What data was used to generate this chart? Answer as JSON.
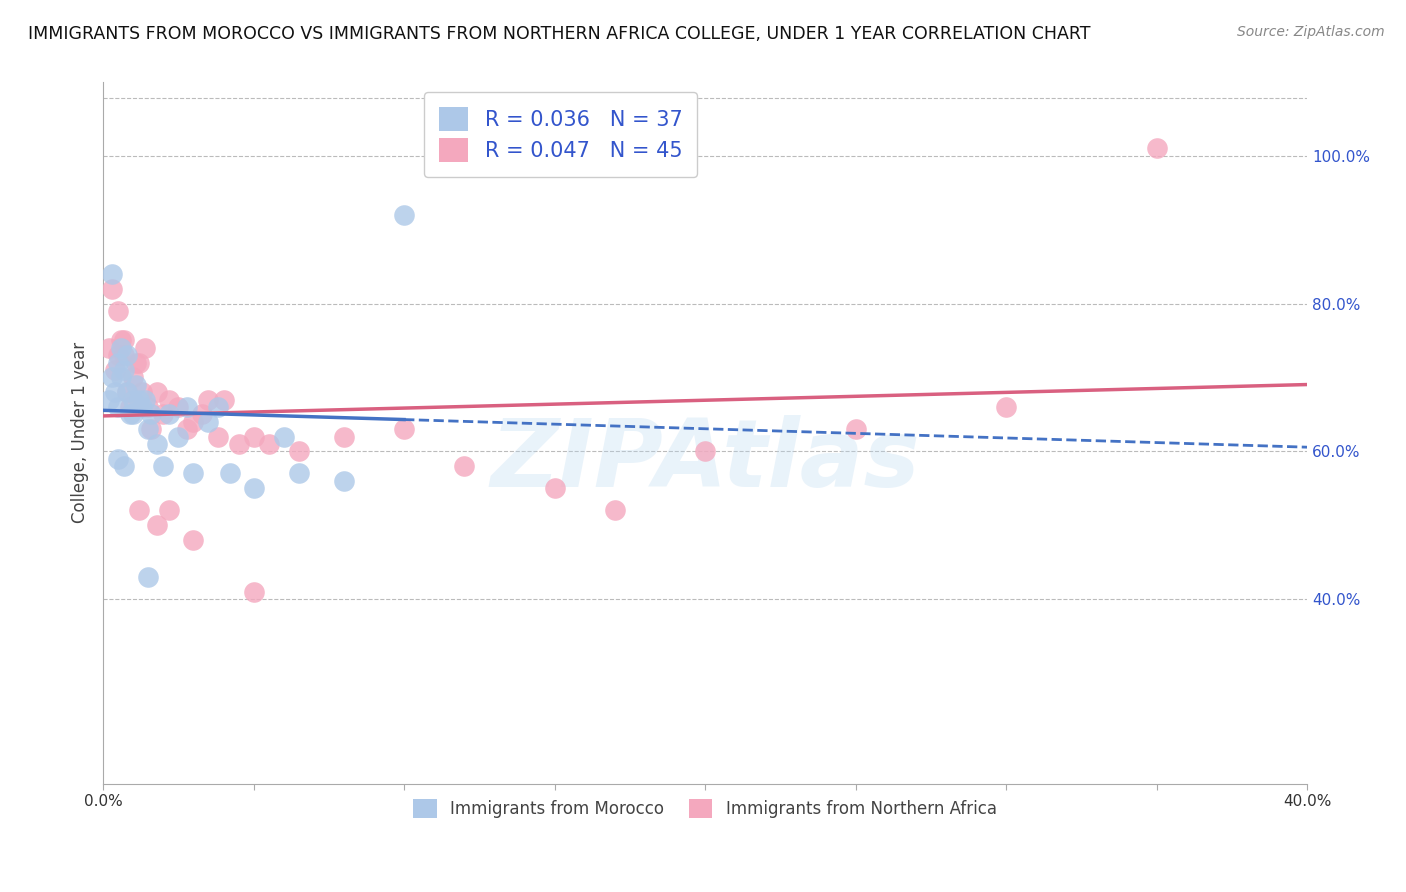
{
  "title": "IMMIGRANTS FROM MOROCCO VS IMMIGRANTS FROM NORTHERN AFRICA COLLEGE, UNDER 1 YEAR CORRELATION CHART",
  "source": "Source: ZipAtlas.com",
  "ylabel": "College, Under 1 year",
  "watermark": "ZIPAtlas",
  "xlim": [
    0.0,
    0.4
  ],
  "ylim": [
    0.15,
    1.1
  ],
  "series1_label": "Immigrants from Morocco",
  "series1_color": "#adc8e8",
  "series1_R": "0.036",
  "series1_N": "37",
  "series2_label": "Immigrants from Northern Africa",
  "series2_color": "#f4a8be",
  "series2_R": "0.047",
  "series2_N": "45",
  "morocco_x": [
    0.002,
    0.003,
    0.003,
    0.004,
    0.005,
    0.005,
    0.006,
    0.006,
    0.007,
    0.008,
    0.008,
    0.009,
    0.01,
    0.01,
    0.011,
    0.012,
    0.013,
    0.014,
    0.015,
    0.016,
    0.018,
    0.02,
    0.022,
    0.025,
    0.028,
    0.03,
    0.035,
    0.038,
    0.042,
    0.05,
    0.06,
    0.065,
    0.08,
    0.1,
    0.005,
    0.007,
    0.015
  ],
  "morocco_y": [
    0.67,
    0.84,
    0.7,
    0.68,
    0.72,
    0.66,
    0.74,
    0.7,
    0.71,
    0.73,
    0.68,
    0.65,
    0.67,
    0.65,
    0.69,
    0.67,
    0.66,
    0.67,
    0.63,
    0.65,
    0.61,
    0.58,
    0.65,
    0.62,
    0.66,
    0.57,
    0.64,
    0.66,
    0.57,
    0.55,
    0.62,
    0.57,
    0.56,
    0.92,
    0.59,
    0.58,
    0.43
  ],
  "northern_x": [
    0.002,
    0.003,
    0.004,
    0.005,
    0.006,
    0.007,
    0.008,
    0.009,
    0.01,
    0.011,
    0.012,
    0.013,
    0.014,
    0.015,
    0.016,
    0.018,
    0.02,
    0.022,
    0.025,
    0.028,
    0.03,
    0.033,
    0.035,
    0.038,
    0.04,
    0.045,
    0.05,
    0.055,
    0.065,
    0.08,
    0.1,
    0.12,
    0.15,
    0.17,
    0.2,
    0.25,
    0.3,
    0.005,
    0.007,
    0.012,
    0.018,
    0.022,
    0.03,
    0.05,
    0.35
  ],
  "northern_y": [
    0.74,
    0.82,
    0.71,
    0.73,
    0.75,
    0.73,
    0.68,
    0.66,
    0.7,
    0.72,
    0.72,
    0.68,
    0.74,
    0.66,
    0.63,
    0.68,
    0.65,
    0.67,
    0.66,
    0.63,
    0.64,
    0.65,
    0.67,
    0.62,
    0.67,
    0.61,
    0.62,
    0.61,
    0.6,
    0.62,
    0.63,
    0.58,
    0.55,
    0.52,
    0.6,
    0.63,
    0.66,
    0.79,
    0.75,
    0.52,
    0.5,
    0.52,
    0.48,
    0.41,
    1.01
  ],
  "line1_color": "#4472c4",
  "line2_color": "#d96080",
  "legend_color": "#3355cc",
  "background_color": "#ffffff",
  "grid_color": "#bbbbbb",
  "y_ticks": [
    0.4,
    0.6,
    0.8,
    1.0
  ],
  "y_tick_labels": [
    "40.0%",
    "60.0%",
    "80.0%",
    "100.0%"
  ]
}
